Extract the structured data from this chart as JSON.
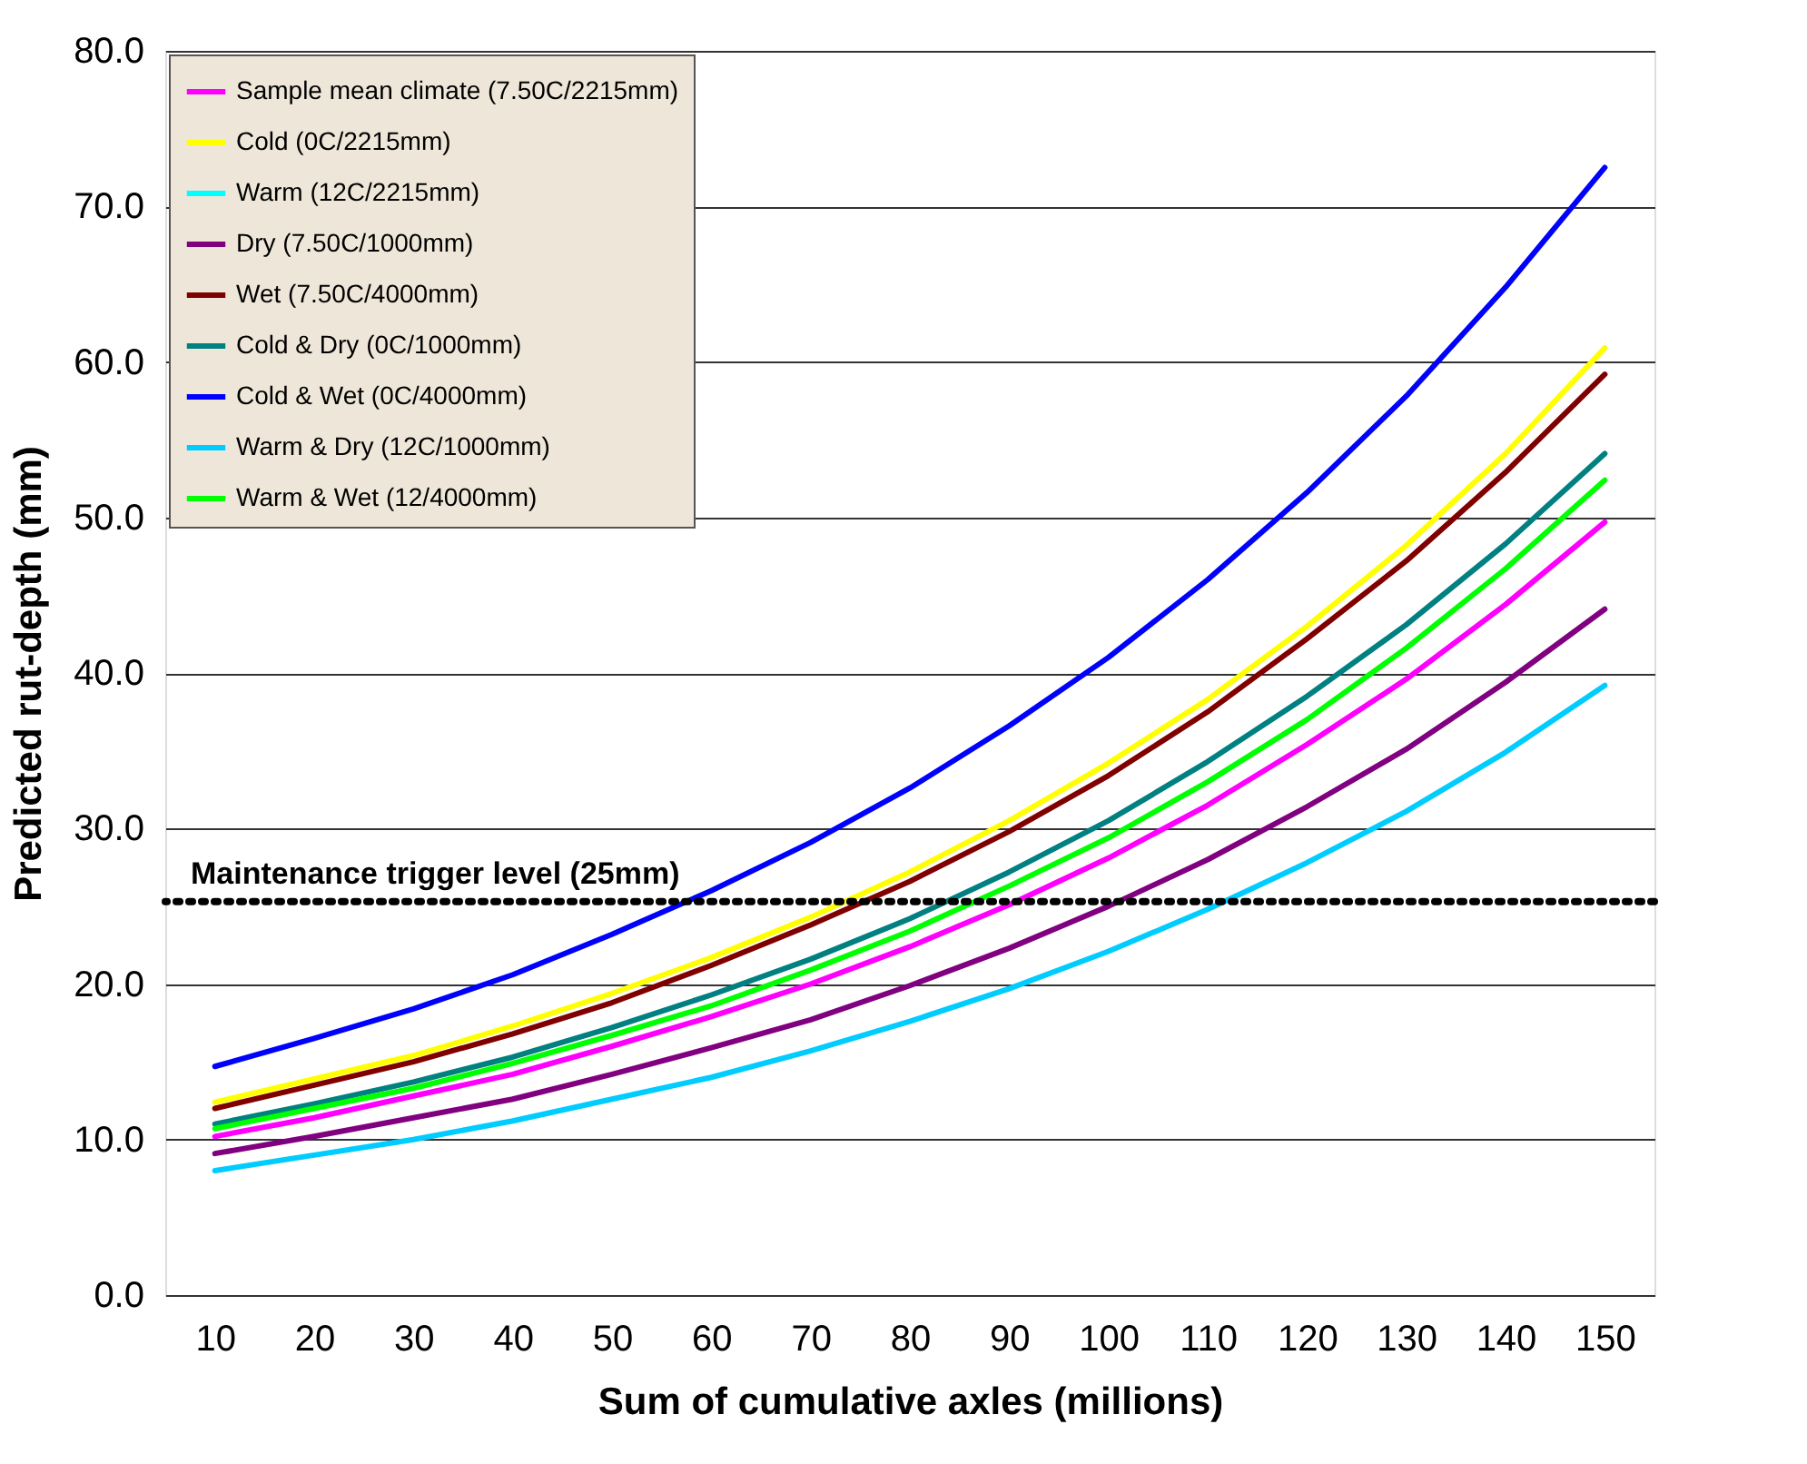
{
  "chart_data": {
    "type": "line",
    "xlabel": "Sum of cumulative axles (millions)",
    "ylabel": "Predicted rut-depth (mm)",
    "categories": [
      "10",
      "20",
      "30",
      "40",
      "50",
      "60",
      "70",
      "80",
      "90",
      "100",
      "110",
      "120",
      "130",
      "140",
      "150"
    ],
    "series": [
      {
        "name": "Sample mean climate (7.50C/2215mm)",
        "color": "#ff00ff",
        "values": [
          10.2,
          11.4,
          12.8,
          14.2,
          16.0,
          17.9,
          20.0,
          22.4,
          25.1,
          28.1,
          31.5,
          35.4,
          39.6,
          44.4,
          49.7
        ]
      },
      {
        "name": "Cold (0C/2215mm)",
        "color": "#ffff00",
        "values": [
          12.4,
          13.9,
          15.4,
          17.3,
          19.4,
          21.7,
          24.3,
          27.2,
          30.5,
          34.2,
          38.3,
          43.0,
          48.2,
          54.1,
          60.9
        ]
      },
      {
        "name": "Warm (12C/2215mm)",
        "color": "#00ffff",
        "values": [
          null,
          null,
          null,
          null,
          null,
          null,
          null,
          null,
          null,
          null,
          null,
          null,
          null,
          null,
          null
        ]
      },
      {
        "name": "Dry (7.50C/1000mm)",
        "color": "#800080",
        "values": [
          9.1,
          10.2,
          11.4,
          12.6,
          14.2,
          15.9,
          17.7,
          19.9,
          22.3,
          25.0,
          28.0,
          31.4,
          35.1,
          39.4,
          44.1
        ]
      },
      {
        "name": "Wet (7.50C/4000mm)",
        "color": "#800000",
        "values": [
          12.0,
          13.5,
          15.0,
          16.8,
          18.8,
          21.2,
          23.8,
          26.6,
          29.8,
          33.4,
          37.5,
          42.2,
          47.2,
          52.9,
          59.2
        ]
      },
      {
        "name": "Cold & Dry (0C/1000mm)",
        "color": "#008080",
        "values": [
          11.0,
          12.3,
          13.7,
          15.3,
          17.2,
          19.3,
          21.6,
          24.2,
          27.2,
          30.5,
          34.3,
          38.5,
          43.1,
          48.3,
          54.1
        ]
      },
      {
        "name": "Cold & Wet (0C/4000mm)",
        "color": "#0000ff",
        "values": [
          14.7,
          16.5,
          18.4,
          20.6,
          23.2,
          26.0,
          29.1,
          32.6,
          36.6,
          41.0,
          46.0,
          51.6,
          57.8,
          64.8,
          72.5
        ]
      },
      {
        "name": "Warm & Dry (12C/1000mm)",
        "color": "#00ccff",
        "values": [
          8.0,
          9.0,
          10.0,
          11.2,
          12.6,
          14.0,
          15.7,
          17.6,
          19.7,
          22.1,
          24.8,
          27.8,
          31.1,
          34.9,
          39.2
        ]
      },
      {
        "name": "Warm & Wet (12/4000mm)",
        "color": "#00ff00",
        "values": [
          10.7,
          12.0,
          13.3,
          14.9,
          16.7,
          18.6,
          20.9,
          23.4,
          26.3,
          29.4,
          33.0,
          37.0,
          41.6,
          46.7,
          52.4
        ]
      }
    ],
    "ylim": [
      0,
      80
    ],
    "yticks": [
      {
        "value": 0,
        "label": "0.0"
      },
      {
        "value": 10,
        "label": "10.0"
      },
      {
        "value": 20,
        "label": "20.0"
      },
      {
        "value": 30,
        "label": "30.0"
      },
      {
        "value": 40,
        "label": "40.0"
      },
      {
        "value": 50,
        "label": "50.0"
      },
      {
        "value": 60,
        "label": "60.0"
      },
      {
        "value": 70,
        "label": "70.0"
      },
      {
        "value": 80,
        "label": "80.0"
      }
    ],
    "ref_lines": [
      {
        "axis": "y",
        "value": 25.3,
        "label": "Maintenance trigger level (25mm)",
        "color": "#000000",
        "line_style": "dotted"
      }
    ],
    "grid": "y",
    "legend": "top left",
    "marker": "none",
    "line_style": "solid"
  }
}
